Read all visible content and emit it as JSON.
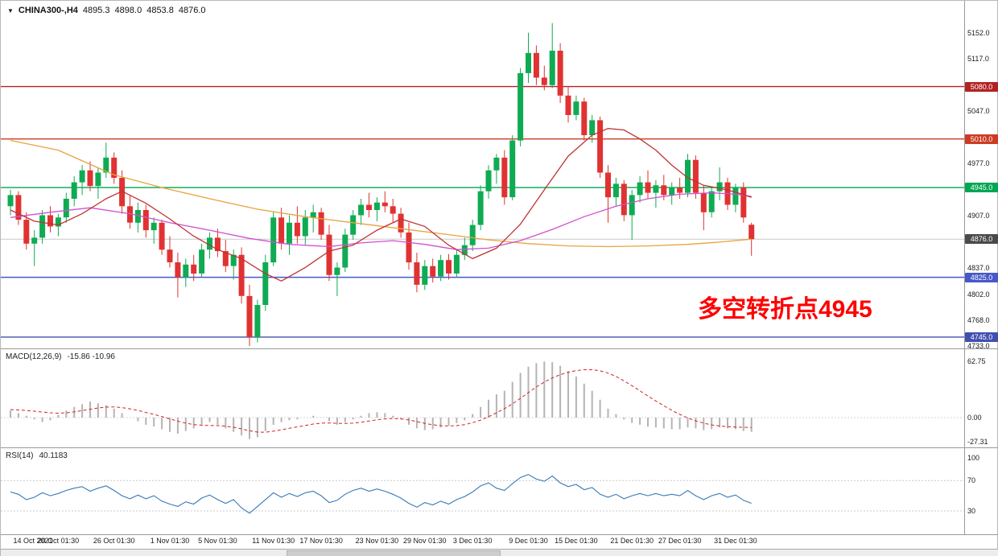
{
  "header": {
    "symbol": "CHINA300-,H4",
    "open": "4895.3",
    "high": "4898.0",
    "low": "4853.8",
    "close": "4876.0"
  },
  "annotation": {
    "text": "多空转折点4945",
    "color": "#ff0000"
  },
  "panels": {
    "macd": {
      "label": "MACD(12,26,9)",
      "values": "-15.86 -10.96"
    },
    "rsi": {
      "label": "RSI(14)",
      "value": "40.1183"
    }
  },
  "chart_data": {
    "type": "candlestick",
    "title": "CHINA300- H4 candlestick chart with MACD and RSI",
    "symbol": "CHINA300-",
    "timeframe": "H4",
    "ylim": [
      4731,
      5185
    ],
    "grid": false,
    "price_ticks": [
      {
        "label": "5152.0",
        "value": 5152
      },
      {
        "label": "5117.0",
        "value": 5117
      },
      {
        "label": "5047.0",
        "value": 5047
      },
      {
        "label": "4977.0",
        "value": 4977
      },
      {
        "label": "4907.0",
        "value": 4907
      },
      {
        "label": "4837.0",
        "value": 4837
      },
      {
        "label": "4802.0",
        "value": 4802
      },
      {
        "label": "4768.0",
        "value": 4768
      },
      {
        "label": "4733.0",
        "value": 4733
      }
    ],
    "levels": [
      {
        "label": "5080.0",
        "value": 5080,
        "color": "#b22222"
      },
      {
        "label": "5010.0",
        "value": 5010,
        "color": "#cc3b22"
      },
      {
        "label": "4945.0",
        "value": 4945,
        "color": "#00a651"
      },
      {
        "label": "4825.0",
        "value": 4825,
        "color": "#4758c8"
      },
      {
        "label": "4745.0",
        "value": 4745,
        "color": "#4050b0"
      }
    ],
    "current_price": {
      "label": "4876.0",
      "value": 4876,
      "badge_color": "#4a4a4a",
      "line_color": "#c8c8c8"
    },
    "candle_colors": {
      "up": "#0fab53",
      "down": "#e03232"
    },
    "candles": [
      [
        4920,
        4942,
        4908,
        4935
      ],
      [
        4935,
        4940,
        4895,
        4902
      ],
      [
        4902,
        4912,
        4862,
        4870
      ],
      [
        4870,
        4888,
        4840,
        4878
      ],
      [
        4878,
        4915,
        4870,
        4908
      ],
      [
        4908,
        4920,
        4885,
        4893
      ],
      [
        4893,
        4910,
        4880,
        4905
      ],
      [
        4905,
        4938,
        4898,
        4930
      ],
      [
        4930,
        4960,
        4920,
        4952
      ],
      [
        4952,
        4975,
        4935,
        4968
      ],
      [
        4968,
        4980,
        4940,
        4947
      ],
      [
        4947,
        4972,
        4930,
        4965
      ],
      [
        4965,
        5005,
        4958,
        4985
      ],
      [
        4985,
        4992,
        4950,
        4958
      ],
      [
        4958,
        4968,
        4910,
        4920
      ],
      [
        4920,
        4935,
        4890,
        4898
      ],
      [
        4898,
        4925,
        4885,
        4915
      ],
      [
        4915,
        4922,
        4878,
        4888
      ],
      [
        4888,
        4905,
        4870,
        4898
      ],
      [
        4898,
        4902,
        4855,
        4862
      ],
      [
        4862,
        4880,
        4838,
        4845
      ],
      [
        4845,
        4858,
        4798,
        4825
      ],
      [
        4825,
        4850,
        4812,
        4842
      ],
      [
        4842,
        4855,
        4820,
        4830
      ],
      [
        4830,
        4870,
        4825,
        4862
      ],
      [
        4862,
        4885,
        4850,
        4878
      ],
      [
        4878,
        4890,
        4852,
        4860
      ],
      [
        4860,
        4875,
        4832,
        4840
      ],
      [
        4840,
        4862,
        4822,
        4855
      ],
      [
        4855,
        4865,
        4790,
        4800
      ],
      [
        4800,
        4815,
        4733,
        4745
      ],
      [
        4745,
        4795,
        4738,
        4788
      ],
      [
        4788,
        4855,
        4780,
        4845
      ],
      [
        4845,
        4912,
        4840,
        4905
      ],
      [
        4905,
        4918,
        4862,
        4870
      ],
      [
        4870,
        4908,
        4855,
        4898
      ],
      [
        4898,
        4920,
        4870,
        4880
      ],
      [
        4880,
        4915,
        4868,
        4905
      ],
      [
        4905,
        4922,
        4885,
        4912
      ],
      [
        4912,
        4918,
        4875,
        4882
      ],
      [
        4882,
        4895,
        4820,
        4828
      ],
      [
        4828,
        4845,
        4800,
        4838
      ],
      [
        4838,
        4890,
        4832,
        4882
      ],
      [
        4882,
        4915,
        4875,
        4908
      ],
      [
        4908,
        4930,
        4895,
        4922
      ],
      [
        4922,
        4938,
        4905,
        4915
      ],
      [
        4915,
        4932,
        4900,
        4925
      ],
      [
        4925,
        4940,
        4912,
        4920
      ],
      [
        4920,
        4930,
        4898,
        4910
      ],
      [
        4910,
        4918,
        4878,
        4885
      ],
      [
        4885,
        4898,
        4835,
        4845
      ],
      [
        4845,
        4858,
        4805,
        4815
      ],
      [
        4815,
        4848,
        4808,
        4840
      ],
      [
        4840,
        4850,
        4818,
        4826
      ],
      [
        4826,
        4855,
        4820,
        4848
      ],
      [
        4848,
        4856,
        4822,
        4830
      ],
      [
        4830,
        4862,
        4825,
        4855
      ],
      [
        4855,
        4878,
        4848,
        4868
      ],
      [
        4868,
        4902,
        4860,
        4895
      ],
      [
        4895,
        4948,
        4888,
        4940
      ],
      [
        4940,
        4975,
        4930,
        4968
      ],
      [
        4968,
        4990,
        4950,
        4985
      ],
      [
        4985,
        4995,
        4922,
        4932
      ],
      [
        4932,
        5015,
        4928,
        5008
      ],
      [
        5008,
        5105,
        5000,
        5098
      ],
      [
        5098,
        5152,
        5085,
        5125
      ],
      [
        5125,
        5135,
        5082,
        5092
      ],
      [
        5092,
        5108,
        5075,
        5082
      ],
      [
        5082,
        5165,
        5078,
        5128
      ],
      [
        5128,
        5138,
        5058,
        5068
      ],
      [
        5068,
        5080,
        5032,
        5042
      ],
      [
        5042,
        5068,
        5035,
        5060
      ],
      [
        5060,
        5065,
        5008,
        5015
      ],
      [
        5015,
        5042,
        5005,
        5035
      ],
      [
        5035,
        5040,
        4958,
        4965
      ],
      [
        4965,
        4975,
        4898,
        4932
      ],
      [
        4932,
        4958,
        4920,
        4950
      ],
      [
        4950,
        4955,
        4900,
        4908
      ],
      [
        4908,
        4942,
        4875,
        4935
      ],
      [
        4935,
        4960,
        4925,
        4952
      ],
      [
        4952,
        4968,
        4930,
        4938
      ],
      [
        4938,
        4955,
        4918,
        4948
      ],
      [
        4948,
        4962,
        4928,
        4935
      ],
      [
        4935,
        4952,
        4922,
        4945
      ],
      [
        4945,
        4958,
        4930,
        4938
      ],
      [
        4938,
        4990,
        4932,
        4982
      ],
      [
        4982,
        4988,
        4930,
        4938
      ],
      [
        4938,
        4948,
        4888,
        4912
      ],
      [
        4912,
        4945,
        4905,
        4940
      ],
      [
        4940,
        4972,
        4928,
        4952
      ],
      [
        4952,
        4958,
        4915,
        4922
      ],
      [
        4922,
        4950,
        4912,
        4945
      ],
      [
        4945,
        4952,
        4898,
        4905
      ],
      [
        4895.3,
        4898,
        4853.8,
        4876
      ]
    ],
    "moving_averages": [
      {
        "name": "ma-slow-orange",
        "color": "#e8a33d",
        "points": [
          [
            0,
            5008
          ],
          [
            6,
            4995
          ],
          [
            13,
            4962
          ],
          [
            19,
            4945
          ],
          [
            25,
            4930
          ],
          [
            31,
            4916
          ],
          [
            37,
            4906
          ],
          [
            43,
            4898
          ],
          [
            49,
            4890
          ],
          [
            55,
            4882
          ],
          [
            60,
            4875
          ],
          [
            65,
            4870
          ],
          [
            70,
            4867
          ],
          [
            75,
            4866
          ],
          [
            80,
            4867
          ],
          [
            85,
            4869
          ],
          [
            89,
            4872
          ],
          [
            93,
            4876
          ]
        ]
      },
      {
        "name": "ma-mid-magenta",
        "color": "#d050d0",
        "points": [
          [
            0,
            4905
          ],
          [
            5,
            4912
          ],
          [
            10,
            4918
          ],
          [
            15,
            4910
          ],
          [
            20,
            4898
          ],
          [
            25,
            4888
          ],
          [
            30,
            4877
          ],
          [
            35,
            4869
          ],
          [
            40,
            4866
          ],
          [
            44,
            4871
          ],
          [
            48,
            4874
          ],
          [
            52,
            4869
          ],
          [
            56,
            4862
          ],
          [
            60,
            4864
          ],
          [
            64,
            4874
          ],
          [
            68,
            4889
          ],
          [
            72,
            4906
          ],
          [
            76,
            4920
          ],
          [
            80,
            4930
          ],
          [
            84,
            4936
          ],
          [
            88,
            4938
          ],
          [
            91,
            4936
          ],
          [
            93,
            4933
          ]
        ]
      },
      {
        "name": "ma-fast-red",
        "color": "#c03333",
        "points": [
          [
            0,
            4915
          ],
          [
            3,
            4900
          ],
          [
            6,
            4895
          ],
          [
            9,
            4910
          ],
          [
            12,
            4930
          ],
          [
            14,
            4940
          ],
          [
            17,
            4924
          ],
          [
            20,
            4903
          ],
          [
            23,
            4880
          ],
          [
            26,
            4862
          ],
          [
            29,
            4850
          ],
          [
            32,
            4830
          ],
          [
            34,
            4820
          ],
          [
            37,
            4838
          ],
          [
            40,
            4860
          ],
          [
            43,
            4868
          ],
          [
            46,
            4888
          ],
          [
            49,
            4903
          ],
          [
            52,
            4893
          ],
          [
            55,
            4868
          ],
          [
            58,
            4850
          ],
          [
            61,
            4864
          ],
          [
            64,
            4896
          ],
          [
            67,
            4942
          ],
          [
            70,
            4987
          ],
          [
            73,
            5015
          ],
          [
            75,
            5024
          ],
          [
            77,
            5022
          ],
          [
            79,
            5010
          ],
          [
            81,
            4995
          ],
          [
            83,
            4975
          ],
          [
            85,
            4958
          ],
          [
            87,
            4948
          ],
          [
            89,
            4944
          ],
          [
            91,
            4939
          ],
          [
            93,
            4932
          ]
        ]
      }
    ],
    "x_labels": [
      {
        "i": 0,
        "t": "14 Oct 2021"
      },
      {
        "i": 6,
        "t": "20 Oct 01:30"
      },
      {
        "i": 13,
        "t": "26 Oct 01:30"
      },
      {
        "i": 20,
        "t": "1 Nov 01:30"
      },
      {
        "i": 26,
        "t": "5 Nov 01:30"
      },
      {
        "i": 33,
        "t": "11 Nov 01:30"
      },
      {
        "i": 39,
        "t": "17 Nov 01:30"
      },
      {
        "i": 46,
        "t": "23 Nov 01:30"
      },
      {
        "i": 52,
        "t": "29 Nov 01:30"
      },
      {
        "i": 58,
        "t": "3 Dec 01:30"
      },
      {
        "i": 65,
        "t": "9 Dec 01:30"
      },
      {
        "i": 71,
        "t": "15 Dec 01:30"
      },
      {
        "i": 78,
        "t": "21 Dec 01:30"
      },
      {
        "i": 84,
        "t": "27 Dec 01:30"
      },
      {
        "i": 91,
        "t": "31 Dec 01:30"
      }
    ],
    "macd": {
      "hist_color": "#b4b4b4",
      "signal_color": "#d22222",
      "ticks": [
        {
          "label": "62.75",
          "value": 62.75
        },
        {
          "label": "0.00",
          "value": 0
        },
        {
          "label": "-27.31",
          "value": -27.31
        }
      ],
      "histogram": [
        8,
        5,
        2,
        -2,
        -5,
        -3,
        3,
        8,
        12,
        15,
        18,
        16,
        14,
        10,
        5,
        0,
        -4,
        -8,
        -10,
        -13,
        -16,
        -18,
        -15,
        -12,
        -8,
        -5,
        -8,
        -12,
        -16,
        -20,
        -24,
        -22,
        -15,
        -8,
        -5,
        -3,
        -2,
        0,
        2,
        0,
        -4,
        -8,
        -5,
        -2,
        2,
        5,
        6,
        5,
        2,
        -2,
        -8,
        -12,
        -14,
        -13,
        -11,
        -9,
        -6,
        -3,
        4,
        12,
        20,
        26,
        30,
        40,
        50,
        57,
        61,
        62.75,
        62,
        58,
        52,
        46,
        38,
        30,
        20,
        10,
        4,
        -2,
        -6,
        -8,
        -10,
        -11,
        -12,
        -13,
        -13,
        -11,
        -12,
        -14,
        -13,
        -11,
        -12,
        -13,
        -15,
        -15.86
      ],
      "signal": [
        9,
        8.6,
        8,
        7.2,
        6.2,
        5.4,
        5,
        5.4,
        6.4,
        7.8,
        9.4,
        10.8,
        11.8,
        12,
        11.2,
        9.8,
        8,
        5.8,
        3.6,
        1.2,
        -1.4,
        -4,
        -6.2,
        -7.8,
        -8.6,
        -8.8,
        -9,
        -9.6,
        -10.8,
        -12.6,
        -14.8,
        -16.2,
        -16.4,
        -15.2,
        -13.6,
        -12,
        -10.4,
        -8.8,
        -7.2,
        -6.2,
        -6,
        -6.4,
        -6.6,
        -6.2,
        -5.2,
        -3.8,
        -2.4,
        -1.4,
        -1,
        -1.4,
        -2.6,
        -4.4,
        -6.4,
        -8,
        -9,
        -9.4,
        -9,
        -7.8,
        -5.8,
        -2.8,
        1,
        5.4,
        10,
        15.4,
        21.6,
        28,
        34.2,
        39.8,
        44.4,
        48,
        50.8,
        52.6,
        53.6,
        53.6,
        52.4,
        49.8,
        46,
        41.2,
        35.8,
        30,
        24.2,
        18.6,
        13.2,
        8.2,
        3.6,
        -0.4,
        -3.6,
        -6.2,
        -8.2,
        -9.4,
        -10.2,
        -10.6,
        -10.9,
        -10.96
      ]
    },
    "rsi": {
      "color": "#3579b8",
      "level_lines": [
        70,
        30
      ],
      "ticks": [
        {
          "label": "100",
          "value": 100
        },
        {
          "label": "70",
          "value": 70
        },
        {
          "label": "30",
          "value": 30
        }
      ],
      "series": [
        55,
        52,
        45,
        48,
        54,
        50,
        53,
        57,
        60,
        62,
        56,
        60,
        63,
        57,
        50,
        46,
        51,
        46,
        50,
        43,
        39,
        36,
        42,
        39,
        47,
        51,
        45,
        40,
        45,
        34,
        27,
        36,
        45,
        54,
        48,
        53,
        49,
        54,
        56,
        50,
        41,
        44,
        52,
        57,
        60,
        56,
        59,
        56,
        52,
        47,
        40,
        35,
        41,
        38,
        43,
        39,
        45,
        49,
        55,
        63,
        67,
        60,
        57,
        66,
        74,
        78,
        72,
        69,
        76,
        67,
        62,
        65,
        58,
        61,
        52,
        48,
        52,
        46,
        50,
        53,
        50,
        53,
        50,
        52,
        50,
        57,
        50,
        45,
        50,
        53,
        48,
        51,
        44,
        40.12
      ]
    }
  }
}
